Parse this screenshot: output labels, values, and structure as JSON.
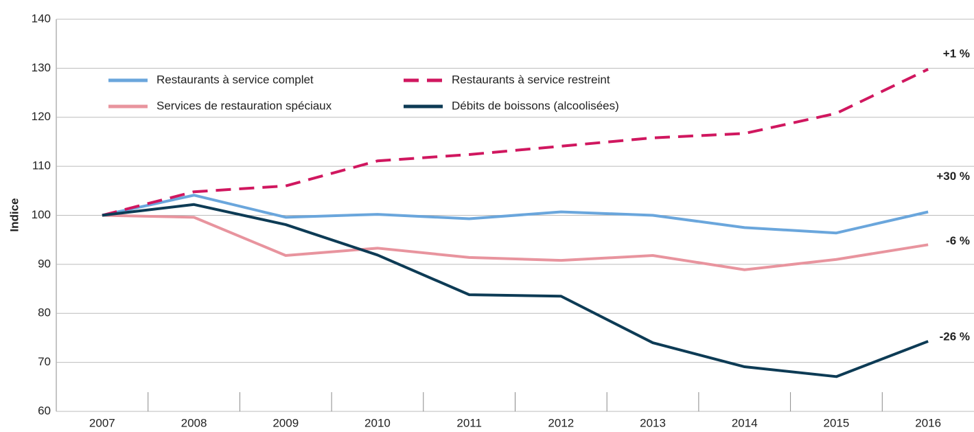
{
  "chart_data": {
    "type": "line",
    "y_label": "Indice",
    "categories": [
      "2007",
      "2008",
      "2009",
      "2010",
      "2011",
      "2012",
      "2013",
      "2014",
      "2015",
      "2016"
    ],
    "series": [
      {
        "name": "Restaurants à service complet",
        "color": "#6aa6dc",
        "dash": false,
        "values": [
          100,
          104.1,
          99.6,
          100.2,
          99.3,
          100.7,
          100,
          97.5,
          96.4,
          100.7
        ]
      },
      {
        "name": "Restaurants à service restreint",
        "color": "#d0175f",
        "dash": true,
        "values": [
          100,
          104.8,
          106,
          111.1,
          112.4,
          114.1,
          115.8,
          116.7,
          120.8,
          129.8
        ]
      },
      {
        "name": "Services de restauration spéciaux",
        "color": "#e8949e",
        "dash": false,
        "values": [
          100,
          99.6,
          91.8,
          93.3,
          91.4,
          90.8,
          91.8,
          88.9,
          91,
          94
        ]
      },
      {
        "name": "Débits de boissons (alcoolisées)",
        "color": "#0d3b55",
        "dash": false,
        "values": [
          100,
          102.2,
          98.1,
          91.9,
          83.8,
          83.5,
          74,
          69.1,
          67.1,
          74.3
        ]
      }
    ],
    "annotations": [
      {
        "text": "+30 %",
        "color": "#d0175f"
      },
      {
        "text": "+1 %",
        "color": "#6aa6dc"
      },
      {
        "text": "-6 %",
        "color": "#e8949e"
      },
      {
        "text": "-26 %",
        "color": "#1f6b9e"
      }
    ],
    "ylim": [
      60,
      140
    ],
    "yticks": [
      60,
      70,
      80,
      90,
      100,
      110,
      120,
      130,
      140
    ],
    "grid": true
  }
}
